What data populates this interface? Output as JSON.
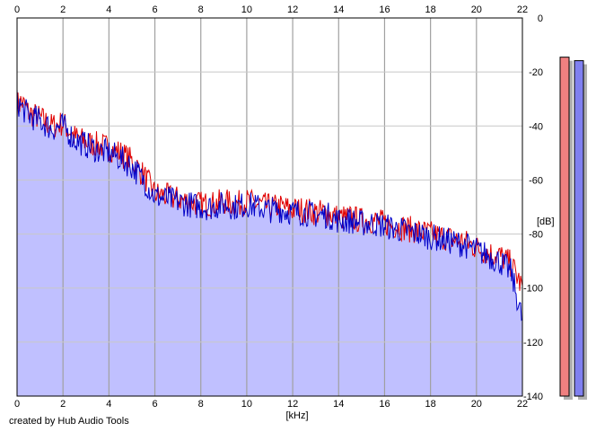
{
  "chart_data": {
    "type": "area",
    "xlabel": "[kHz]",
    "ylabel": "[dB]",
    "xlim": [
      0,
      22
    ],
    "ylim": [
      -140,
      0
    ],
    "x_ticks": [
      0,
      2,
      4,
      6,
      8,
      10,
      12,
      14,
      16,
      18,
      20,
      22
    ],
    "y_ticks": [
      0,
      -20,
      -40,
      -60,
      -80,
      -100,
      -120,
      -140
    ],
    "grid": true,
    "series": [
      {
        "color": "#e00000",
        "x": [
          0,
          0.2,
          0.5,
          1,
          1.5,
          2,
          2.5,
          3,
          3.5,
          4,
          4.5,
          5,
          5.5,
          6,
          6.5,
          7,
          7.5,
          8,
          8.5,
          9,
          9.5,
          10,
          10.5,
          11,
          11.5,
          12,
          12.5,
          13,
          13.5,
          14,
          14.5,
          15,
          15.5,
          16,
          16.5,
          17,
          17.5,
          18,
          18.5,
          19,
          19.5,
          20,
          20.5,
          21,
          21.5,
          22
        ],
        "values": [
          -32,
          -31,
          -35,
          -37,
          -40,
          -39,
          -44,
          -46,
          -47,
          -48,
          -50,
          -53,
          -58,
          -65,
          -66,
          -67,
          -68,
          -69,
          -69,
          -68,
          -69,
          -68,
          -69,
          -70,
          -70,
          -71,
          -71,
          -72,
          -72,
          -74,
          -74,
          -75,
          -75,
          -76,
          -77,
          -78,
          -79,
          -80,
          -81,
          -82,
          -83,
          -85,
          -87,
          -88,
          -91,
          -100
        ]
      },
      {
        "color": "#0000c8",
        "x": [
          0,
          0.2,
          0.5,
          1,
          1.5,
          2,
          2.5,
          3,
          3.5,
          4,
          4.5,
          5,
          5.5,
          6,
          6.5,
          7,
          7.5,
          8,
          8.5,
          9,
          9.5,
          10,
          10.5,
          11,
          11.5,
          12,
          12.5,
          13,
          13.5,
          14,
          14.5,
          15,
          15.5,
          16,
          16.5,
          17,
          17.5,
          18,
          18.5,
          19,
          19.5,
          20,
          20.5,
          21,
          21.5,
          22
        ],
        "values": [
          -31,
          -33,
          -36,
          -38,
          -41,
          -40,
          -45,
          -47,
          -49,
          -50,
          -52,
          -55,
          -60,
          -66,
          -67,
          -68,
          -69,
          -70,
          -70,
          -69,
          -70,
          -69,
          -70,
          -71,
          -71,
          -72,
          -72,
          -73,
          -73,
          -75,
          -75,
          -76,
          -76,
          -77,
          -78,
          -79,
          -80,
          -81,
          -82,
          -83,
          -84,
          -86,
          -88,
          -90,
          -94,
          -112
        ]
      }
    ],
    "level_meters": [
      {
        "color": "#f08080",
        "level": 0.97
      },
      {
        "color": "#8080f0",
        "level": 0.96
      }
    ],
    "fill_color": "#c0c0ff"
  },
  "credit": "created by Hub Audio Tools"
}
